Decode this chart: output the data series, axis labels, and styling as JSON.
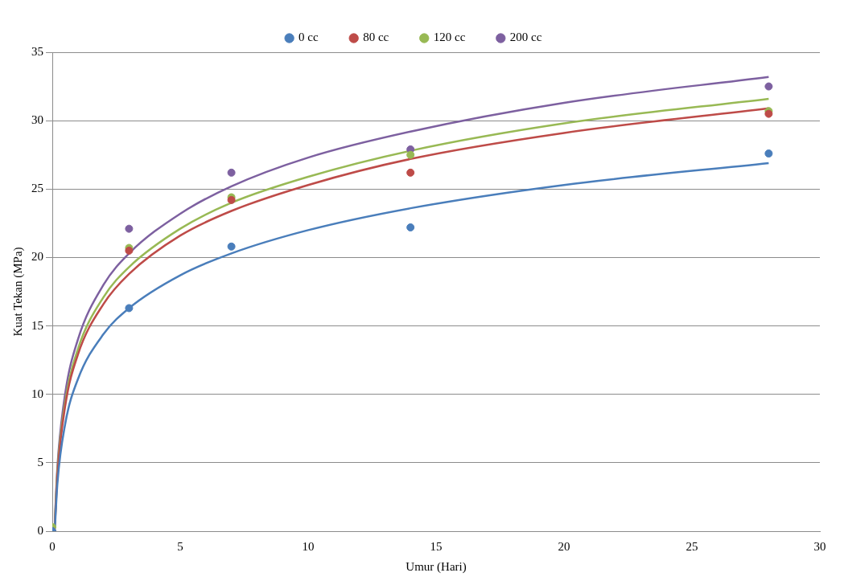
{
  "chart_data": {
    "type": "scatter",
    "xlabel": "Umur (Hari)",
    "ylabel": "Kuat Tekan (MPa)",
    "xlim": [
      0,
      30
    ],
    "xticks": [
      0,
      5,
      10,
      15,
      20,
      25,
      30
    ],
    "ylim": [
      0,
      35
    ],
    "yticks": [
      0,
      5,
      10,
      15,
      20,
      25,
      30,
      35
    ],
    "grid": "y",
    "legend": "top",
    "marker": "circle",
    "series": [
      {
        "name": "0 cc",
        "color": "#4a7ebb",
        "x": [
          0,
          3,
          7,
          14,
          28
        ],
        "values": [
          0,
          16.3,
          20.8,
          22.2,
          27.6
        ]
      },
      {
        "name": "80 cc",
        "color": "#be4b48",
        "x": [
          0,
          3,
          7,
          14,
          28
        ],
        "values": [
          0,
          20.5,
          24.2,
          26.2,
          30.5
        ]
      },
      {
        "name": "120 cc",
        "color": "#98b954",
        "x": [
          0,
          3,
          7,
          14,
          28
        ],
        "values": [
          0.3,
          20.7,
          24.4,
          27.5,
          30.7
        ]
      },
      {
        "name": "200 cc",
        "color": "#7d60a0",
        "x": [
          3,
          7,
          14,
          28
        ],
        "values": [
          22.1,
          26.2,
          27.9,
          32.5
        ]
      },
      {
        "type": "line",
        "marker": "none",
        "color": "#4a7ebb",
        "x": [
          0.1,
          0.2,
          0.5,
          1,
          2,
          3,
          5,
          7,
          10,
          14,
          20,
          28
        ],
        "values": [
          0.2,
          3.5,
          7.8,
          11.1,
          14.4,
          16.3,
          18.7,
          20.3,
          22.0,
          23.6,
          25.3,
          26.9
        ]
      },
      {
        "type": "line",
        "marker": "none",
        "color": "#be4b48",
        "x": [
          0.1,
          0.2,
          0.5,
          1,
          2,
          3,
          5,
          7,
          10,
          14,
          20,
          28
        ],
        "values": [
          0.4,
          4.1,
          9.1,
          12.9,
          16.6,
          18.8,
          21.6,
          23.4,
          25.3,
          27.2,
          29.1,
          30.9
        ]
      },
      {
        "type": "line",
        "marker": "none",
        "color": "#98b954",
        "x": [
          0.1,
          0.2,
          0.5,
          1,
          2,
          3,
          5,
          7,
          10,
          14,
          20,
          28
        ],
        "values": [
          0.6,
          4.4,
          9.4,
          13.3,
          17.1,
          19.3,
          22.1,
          24.0,
          25.9,
          27.8,
          29.8,
          31.6
        ]
      },
      {
        "type": "line",
        "marker": "none",
        "color": "#7d60a0",
        "x": [
          0.1,
          0.2,
          0.5,
          1,
          2,
          3,
          5,
          7,
          10,
          14,
          20,
          28
        ],
        "values": [
          0.7,
          4.7,
          10.0,
          14.0,
          18.0,
          20.3,
          23.2,
          25.2,
          27.3,
          29.2,
          31.3,
          33.2
        ]
      }
    ]
  }
}
